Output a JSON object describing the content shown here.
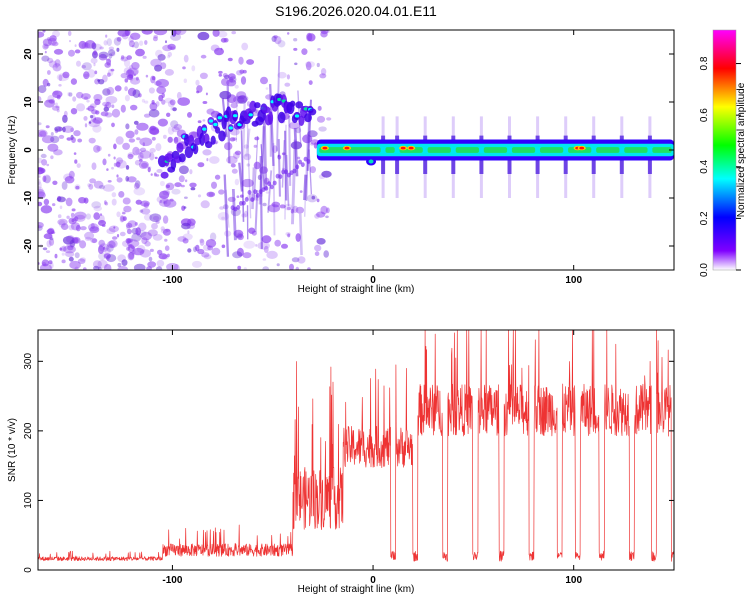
{
  "chart_data": [
    {
      "type": "heatmap",
      "title": "S196.2026.020.04.01.E11",
      "xlabel": "Height of straight line (km)",
      "ylabel": "Frequency (Hz)",
      "xlim": [
        -167,
        150
      ],
      "ylim": [
        -25,
        25
      ],
      "x_ticks": [
        -100,
        0,
        100
      ],
      "y_ticks": [
        20,
        10,
        0,
        -10,
        -20
      ],
      "colorbar": {
        "label": "Normalized spectral amplitude",
        "range": [
          0,
          0.93
        ],
        "ticks": [
          0.0,
          0.2,
          0.4,
          0.6,
          0.8
        ],
        "colormap": [
          "#ffffff",
          "#8000ff",
          "#0000ff",
          "#00ffff",
          "#00ff00",
          "#ffff00",
          "#ff0000",
          "#ff00ff"
        ]
      },
      "features": {
        "noise_region_x": [
          -167,
          -28
        ],
        "noise_color": "#8a3cf0",
        "rising_ridge": {
          "x": [
            -105,
            -90,
            -75,
            -60,
            -45,
            -30
          ],
          "y": [
            -4,
            2,
            5,
            7,
            9,
            8
          ]
        },
        "steady_band": {
          "x_start": -28,
          "x_end": 150,
          "frequency_hz": 0
        },
        "pulses_x": [
          5,
          12,
          26,
          40,
          54,
          68,
          82,
          96,
          110,
          124,
          138
        ],
        "hotspots_x": [
          -24,
          -13,
          15,
          19,
          102,
          104
        ]
      }
    },
    {
      "type": "line",
      "xlabel": "Height of straight line (km)",
      "ylabel": "SNR (10 * v/v)",
      "xlim": [
        -167,
        150
      ],
      "ylim": [
        0,
        345
      ],
      "x_ticks": [
        -100,
        0,
        100
      ],
      "y_ticks": [
        0,
        100,
        200,
        300
      ],
      "series": [
        {
          "name": "SNR",
          "color": "#ee3333",
          "segments": [
            {
              "x": [
                -167,
                -105
              ],
              "baseline": 15,
              "amplitude": 10
            },
            {
              "x": [
                -105,
                -40
              ],
              "baseline": 25,
              "amplitude": 30
            },
            {
              "x": [
                -40,
                -15
              ],
              "baseline": 85,
              "amplitude": 150
            },
            {
              "x": [
                -15,
                20
              ],
              "baseline": 165,
              "amplitude": 100
            },
            {
              "x": [
                20,
                150
              ],
              "baseline": 215,
              "amplitude": 125
            }
          ],
          "dips_x": [
            -3,
            10,
            21,
            36,
            51,
            64,
            79,
            93,
            102,
            114,
            129,
            140,
            150
          ],
          "dip_level": 20,
          "peak_max": 345
        }
      ]
    }
  ]
}
